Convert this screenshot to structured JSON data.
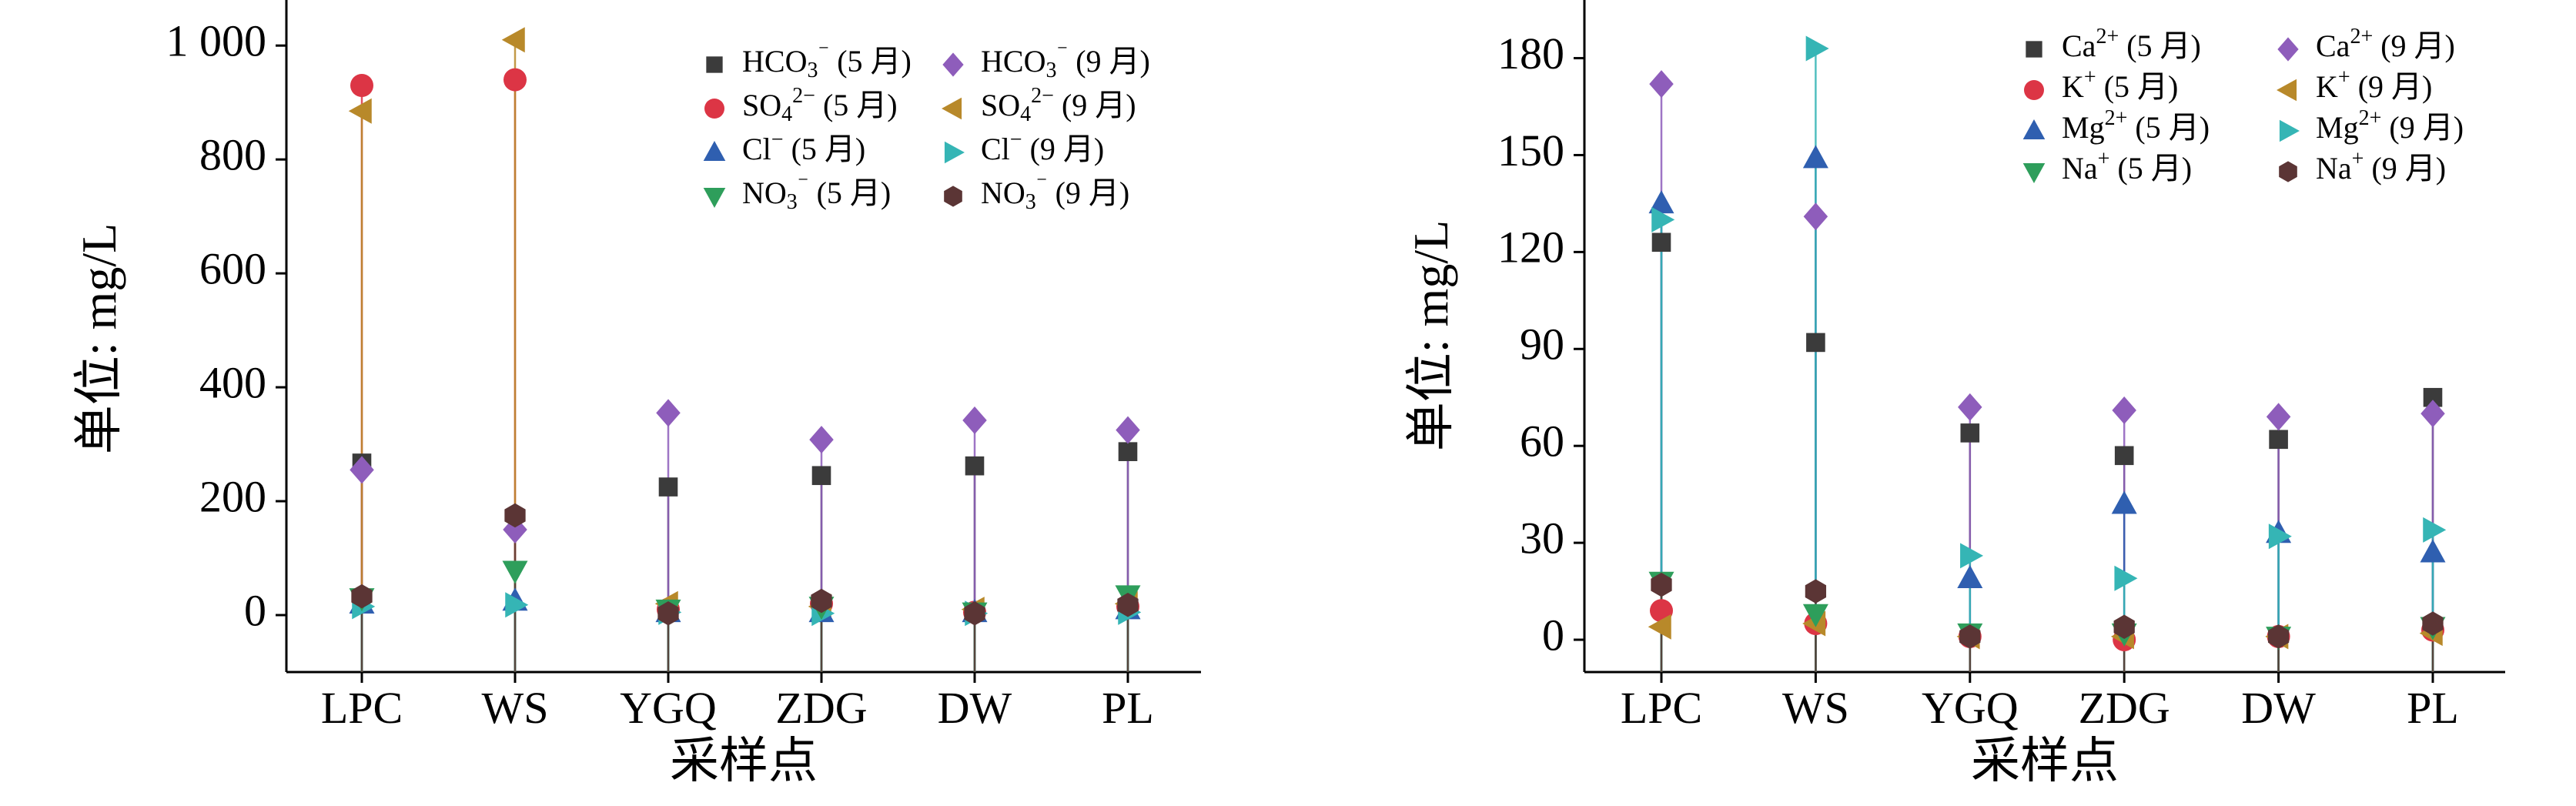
{
  "colors": {
    "dark_gray": "#3b3b3b",
    "red": "#dc3545",
    "blue": "#2f5fb0",
    "green": "#2e9e5b",
    "purple": "#8e5dbb",
    "gold": "#b8892a",
    "teal": "#35b5b5",
    "maroon": "#5b3535"
  },
  "chart_data": [
    {
      "type": "scatter",
      "xlabel": "采样点",
      "ylabel": "单位: mg/L",
      "categories": [
        "LPC",
        "WS",
        "YGQ",
        "ZDG",
        "DW",
        "PL"
      ],
      "ylim": [
        -100,
        1080
      ],
      "yticks": [
        0,
        200,
        400,
        600,
        800,
        1000
      ],
      "ytick_labels": [
        "0",
        "200",
        "400",
        "600",
        "800",
        "1 000"
      ],
      "grid": false,
      "legend_position": "top-right",
      "legend_columns": 2,
      "series": [
        {
          "name": "HCO3⁻ (5 月)",
          "base": "HCO",
          "sub": "3",
          "sup": "⁻",
          "month": " (5 月)",
          "marker": "square",
          "color": "#3b3b3b",
          "values": [
            267,
            null,
            225,
            245,
            262,
            287
          ]
        },
        {
          "name": "HCO3⁻ (9 月)",
          "base": "HCO",
          "sub": "3",
          "sup": "⁻",
          "month": " (9 月)",
          "marker": "diamond",
          "color": "#8e5dbb",
          "values": [
            255,
            150,
            355,
            308,
            342,
            325
          ]
        },
        {
          "name": "SO4²⁻ (5 月)",
          "base": "SO",
          "sub": "4",
          "sup": "2−",
          "month": " (5 月)",
          "marker": "circle",
          "color": "#dc3545",
          "values": [
            930,
            940,
            10,
            20,
            5,
            15
          ]
        },
        {
          "name": "SO4²⁻ (9 月)",
          "base": "SO",
          "sub": "4",
          "sup": "2−",
          "month": " (9 月)",
          "marker": "triangle-left",
          "color": "#b8892a",
          "values": [
            885,
            1010,
            20,
            15,
            10,
            20
          ]
        },
        {
          "name": "Cl⁻ (5 月)",
          "base": "Cl",
          "sub": "",
          "sup": "−",
          "month": " (5 月)",
          "marker": "triangle-up",
          "color": "#2f5fb0",
          "values": [
            20,
            25,
            5,
            5,
            5,
            10
          ]
        },
        {
          "name": "Cl⁻ (9 月)",
          "base": "Cl",
          "sub": "",
          "sup": "−",
          "month": " (9 月)",
          "marker": "triangle-right",
          "color": "#35b5b5",
          "values": [
            15,
            18,
            5,
            3,
            3,
            5
          ]
        },
        {
          "name": "NO3⁻ (5 月)",
          "base": "NO",
          "sub": "3",
          "sup": "⁻",
          "month": " (5 月)",
          "marker": "triangle-down",
          "color": "#2e9e5b",
          "values": [
            30,
            78,
            10,
            15,
            5,
            35
          ]
        },
        {
          "name": "NO3⁻ (9 月)",
          "base": "NO",
          "sub": "3",
          "sup": "⁻",
          "month": " (9 月)",
          "marker": "hexagon",
          "color": "#5b3535",
          "values": [
            33,
            175,
            3,
            25,
            3,
            18
          ]
        }
      ]
    },
    {
      "type": "scatter",
      "xlabel": "采样点",
      "ylabel": "单位: mg/L",
      "categories": [
        "LPC",
        "WS",
        "YGQ",
        "ZDG",
        "DW",
        "PL"
      ],
      "ylim": [
        -10,
        198
      ],
      "yticks": [
        0,
        30,
        60,
        90,
        120,
        150,
        180
      ],
      "ytick_labels": [
        "0",
        "30",
        "60",
        "90",
        "120",
        "150",
        "180"
      ],
      "grid": false,
      "legend_position": "top-right",
      "legend_columns": 2,
      "series": [
        {
          "name": "Ca²⁺ (5 月)",
          "base": "Ca",
          "sub": "",
          "sup": "2+",
          "month": " (5 月)",
          "marker": "square",
          "color": "#3b3b3b",
          "values": [
            123,
            92,
            64,
            57,
            62,
            75
          ]
        },
        {
          "name": "Ca²⁺ (9 月)",
          "base": "Ca",
          "sub": "",
          "sup": "2+",
          "month": " (9 月)",
          "marker": "diamond",
          "color": "#8e5dbb",
          "values": [
            172,
            131,
            72,
            71,
            69,
            70
          ]
        },
        {
          "name": "K⁺ (5 月)",
          "base": "K",
          "sub": "",
          "sup": "+",
          "month": " (5 月)",
          "marker": "circle",
          "color": "#dc3545",
          "values": [
            9,
            5,
            1,
            0,
            1,
            3
          ]
        },
        {
          "name": "K⁺ (9 月)",
          "base": "K",
          "sub": "",
          "sup": "+",
          "month": " (9 月)",
          "marker": "triangle-left",
          "color": "#b8892a",
          "values": [
            4,
            5,
            1,
            1,
            1,
            2
          ]
        },
        {
          "name": "Mg²⁺ (5 月)",
          "base": "Mg",
          "sub": "",
          "sup": "2+",
          "month": " (5 月)",
          "marker": "triangle-up",
          "color": "#2f5fb0",
          "values": [
            135,
            149,
            19,
            42,
            33,
            27
          ]
        },
        {
          "name": "Mg²⁺ (9 月)",
          "base": "Mg",
          "sub": "",
          "sup": "2+",
          "month": " (9 月)",
          "marker": "triangle-right",
          "color": "#35b5b5",
          "values": [
            130,
            183,
            26,
            19,
            32,
            34
          ]
        },
        {
          "name": "Na⁺ (5 月)",
          "base": "Na",
          "sub": "",
          "sup": "+",
          "month": " (5 月)",
          "marker": "triangle-down",
          "color": "#2e9e5b",
          "values": [
            18,
            8,
            2,
            2,
            1,
            4
          ]
        },
        {
          "name": "Na⁺ (9 月)",
          "base": "Na",
          "sub": "",
          "sup": "+",
          "month": " (9 月)",
          "marker": "hexagon",
          "color": "#5b3535",
          "values": [
            17,
            15,
            1,
            4,
            1,
            5
          ]
        }
      ]
    }
  ]
}
